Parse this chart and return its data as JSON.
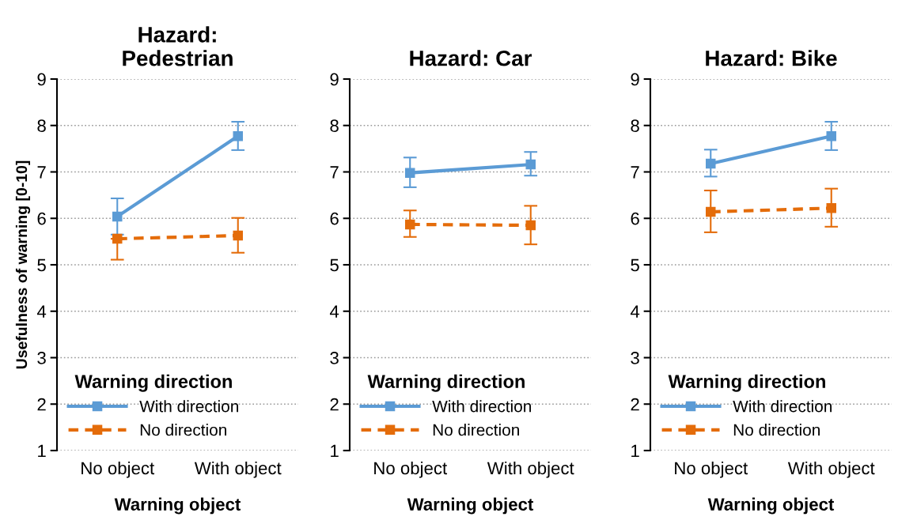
{
  "chart_data": [
    {
      "type": "line",
      "title": "Hazard:\nPedestrian",
      "xlabel": "Warning object",
      "ylabel": "Usefulness of warning [0-10]",
      "legend_title": "Warning direction",
      "categories": [
        "No object",
        "With object"
      ],
      "ylim": [
        1,
        9
      ],
      "yticks": [
        1,
        2,
        3,
        4,
        5,
        6,
        7,
        8,
        9
      ],
      "grid": "y",
      "legend": "bottom left",
      "marker": "square",
      "series": [
        {
          "name": "With direction",
          "color": "#5b9bd5",
          "line_style": "solid",
          "values": [
            6.04,
            7.77
          ],
          "errors": [
            [
              5.65,
              6.43
            ],
            [
              7.47,
              8.08
            ]
          ]
        },
        {
          "name": "No direction",
          "color": "#e46c0a",
          "line_style": "dashed",
          "values": [
            5.56,
            5.63
          ],
          "errors": [
            [
              5.11,
              5.56
            ],
            [
              5.26,
              6.01
            ]
          ]
        }
      ]
    },
    {
      "type": "line",
      "title": "Hazard: Car",
      "xlabel": "Warning object",
      "legend_title": "Warning direction",
      "categories": [
        "No object",
        "With object"
      ],
      "ylim": [
        1,
        9
      ],
      "yticks": [
        1,
        2,
        3,
        4,
        5,
        6,
        7,
        8,
        9
      ],
      "grid": "y",
      "legend": "bottom left",
      "marker": "square",
      "series": [
        {
          "name": "With direction",
          "color": "#5b9bd5",
          "line_style": "solid",
          "values": [
            6.98,
            7.16
          ],
          "errors": [
            [
              6.67,
              7.31
            ],
            [
              6.92,
              7.43
            ]
          ]
        },
        {
          "name": "No direction",
          "color": "#e46c0a",
          "line_style": "dashed",
          "values": [
            5.87,
            5.85
          ],
          "errors": [
            [
              5.6,
              6.17
            ],
            [
              5.44,
              6.27
            ]
          ]
        }
      ]
    },
    {
      "type": "line",
      "title": "Hazard: Bike",
      "xlabel": "Warning object",
      "legend_title": "Warning direction",
      "categories": [
        "No object",
        "With object"
      ],
      "ylim": [
        1,
        9
      ],
      "yticks": [
        1,
        2,
        3,
        4,
        5,
        6,
        7,
        8,
        9
      ],
      "grid": "y",
      "legend": "bottom left",
      "marker": "square",
      "series": [
        {
          "name": "With direction",
          "color": "#5b9bd5",
          "line_style": "solid",
          "values": [
            7.18,
            7.77
          ],
          "errors": [
            [
              6.9,
              7.48
            ],
            [
              7.47,
              8.08
            ]
          ]
        },
        {
          "name": "No direction",
          "color": "#e46c0a",
          "line_style": "dashed",
          "values": [
            6.14,
            6.22
          ],
          "errors": [
            [
              5.7,
              6.6
            ],
            [
              5.82,
              6.64
            ]
          ]
        }
      ]
    }
  ]
}
